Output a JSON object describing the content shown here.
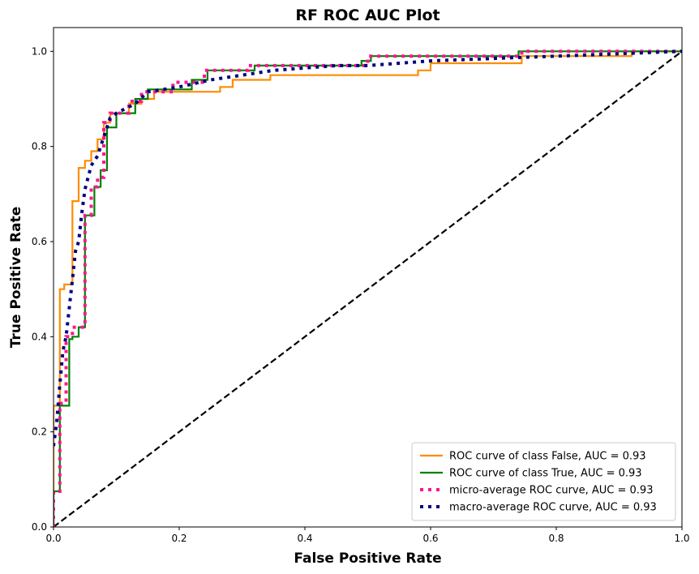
{
  "chart_data": {
    "type": "line",
    "title": "RF ROC AUC Plot",
    "xlabel": "False Positive Rate",
    "ylabel": "True Positive Rate",
    "xlim": [
      0.0,
      1.0
    ],
    "ylim": [
      0.0,
      1.05
    ],
    "xticks": [
      "0.0",
      "0.2",
      "0.4",
      "0.6",
      "0.8",
      "1.0"
    ],
    "yticks": [
      "0.0",
      "0.2",
      "0.4",
      "0.6",
      "0.8",
      "1.0"
    ],
    "legend_position": "lower-right",
    "series": [
      {
        "name": "ROC curve of class False, AUC = 0.93",
        "color": "#ff8c00",
        "style": "solid",
        "x": [
          0.0,
          0.0,
          0.0,
          0.01,
          0.01,
          0.017,
          0.017,
          0.03,
          0.03,
          0.04,
          0.04,
          0.05,
          0.05,
          0.06,
          0.06,
          0.07,
          0.07,
          0.08,
          0.08,
          0.09,
          0.09,
          0.12,
          0.12,
          0.14,
          0.14,
          0.16,
          0.16,
          0.265,
          0.265,
          0.285,
          0.285,
          0.345,
          0.345,
          0.58,
          0.58,
          0.6,
          0.6,
          0.745,
          0.745,
          0.92,
          0.92,
          1.0
        ],
        "y": [
          0.0,
          0.05,
          0.255,
          0.255,
          0.5,
          0.5,
          0.51,
          0.51,
          0.685,
          0.685,
          0.755,
          0.755,
          0.77,
          0.77,
          0.79,
          0.79,
          0.815,
          0.815,
          0.85,
          0.85,
          0.87,
          0.87,
          0.89,
          0.89,
          0.9,
          0.9,
          0.915,
          0.915,
          0.925,
          0.925,
          0.94,
          0.94,
          0.95,
          0.95,
          0.96,
          0.96,
          0.975,
          0.975,
          0.99,
          0.99,
          1.0,
          1.0
        ]
      },
      {
        "name": "ROC curve of class True, AUC = 0.93",
        "color": "#008000",
        "style": "solid",
        "x": [
          0.0,
          0.0,
          0.01,
          0.01,
          0.025,
          0.025,
          0.03,
          0.03,
          0.04,
          0.04,
          0.05,
          0.05,
          0.065,
          0.065,
          0.075,
          0.075,
          0.085,
          0.085,
          0.1,
          0.1,
          0.13,
          0.13,
          0.15,
          0.15,
          0.22,
          0.22,
          0.245,
          0.245,
          0.32,
          0.32,
          0.49,
          0.49,
          0.505,
          0.505,
          0.74,
          0.74,
          1.0
        ],
        "y": [
          0.0,
          0.075,
          0.075,
          0.255,
          0.255,
          0.395,
          0.395,
          0.4,
          0.4,
          0.42,
          0.42,
          0.655,
          0.655,
          0.715,
          0.715,
          0.75,
          0.75,
          0.84,
          0.84,
          0.87,
          0.87,
          0.9,
          0.9,
          0.92,
          0.92,
          0.94,
          0.94,
          0.96,
          0.96,
          0.97,
          0.97,
          0.98,
          0.98,
          0.99,
          0.99,
          1.0,
          1.0
        ]
      },
      {
        "name": "micro-average ROC curve, AUC = 0.93",
        "color": "#ff1493",
        "style": "dotted",
        "x": [
          0.0,
          0.0,
          0.01,
          0.01,
          0.02,
          0.02,
          0.03,
          0.03,
          0.05,
          0.05,
          0.06,
          0.06,
          0.07,
          0.07,
          0.08,
          0.08,
          0.09,
          0.09,
          0.12,
          0.12,
          0.14,
          0.14,
          0.19,
          0.19,
          0.24,
          0.24,
          0.31,
          0.31,
          0.5,
          0.5,
          0.745,
          0.745,
          1.0
        ],
        "y": [
          0.0,
          0.075,
          0.075,
          0.26,
          0.26,
          0.4,
          0.4,
          0.42,
          0.42,
          0.655,
          0.655,
          0.715,
          0.715,
          0.735,
          0.735,
          0.85,
          0.85,
          0.87,
          0.87,
          0.895,
          0.895,
          0.915,
          0.915,
          0.935,
          0.935,
          0.96,
          0.96,
          0.97,
          0.97,
          0.99,
          0.99,
          1.0,
          1.0
        ]
      },
      {
        "name": "macro-average ROC curve, AUC = 0.93",
        "color": "#000080",
        "style": "dotted",
        "x": [
          0.0,
          0.005,
          0.01,
          0.015,
          0.02,
          0.03,
          0.035,
          0.04,
          0.045,
          0.05,
          0.06,
          0.07,
          0.08,
          0.09,
          0.1,
          0.13,
          0.15,
          0.2,
          0.25,
          0.3,
          0.35,
          0.45,
          0.5,
          0.55,
          0.6,
          0.7,
          0.8,
          0.9,
          1.0
        ],
        "y": [
          0.17,
          0.22,
          0.3,
          0.37,
          0.4,
          0.52,
          0.58,
          0.6,
          0.66,
          0.71,
          0.76,
          0.78,
          0.82,
          0.86,
          0.87,
          0.89,
          0.915,
          0.925,
          0.94,
          0.95,
          0.96,
          0.97,
          0.97,
          0.975,
          0.98,
          0.985,
          0.99,
          0.995,
          1.0
        ]
      },
      {
        "name": "chance",
        "color": "#000000",
        "style": "dashed",
        "x": [
          0.0,
          1.0
        ],
        "y": [
          0.0,
          1.0
        ]
      }
    ]
  }
}
